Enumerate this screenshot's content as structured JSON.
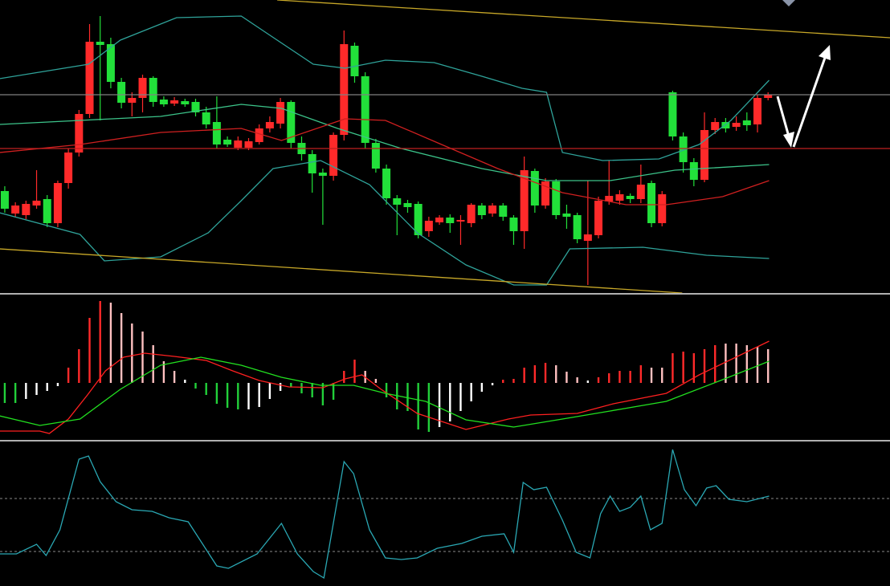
{
  "chart_data": [
    {
      "type": "candlestick",
      "up_color": "#ff2a2a",
      "down_color": "#22e03a",
      "xlim": [
        -0.45,
        83.5
      ],
      "ylim": [
        0,
        365
      ],
      "open": [
        127,
        99,
        97,
        109,
        117,
        87,
        137,
        175,
        223,
        313,
        310,
        263,
        237,
        243,
        268,
        241,
        236,
        239,
        238,
        225,
        213,
        191,
        181,
        181,
        188,
        205,
        211,
        238,
        187,
        173,
        150,
        146,
        197,
        308,
        270,
        187,
        155,
        118,
        112,
        111,
        77,
        88,
        94,
        89,
        87,
        109,
        99,
        109,
        94,
        77,
        152,
        109,
        139,
        99,
        97,
        65,
        72,
        114,
        115,
        121,
        117,
        137,
        87,
        250,
        195,
        163,
        141,
        203,
        213,
        207,
        215,
        210,
        243
      ],
      "high": [
        133,
        113,
        115,
        153,
        122,
        140,
        180,
        228,
        335,
        345,
        318,
        268,
        250,
        272,
        270,
        245,
        244,
        242,
        242,
        232,
        245,
        195,
        195,
        193,
        210,
        220,
        243,
        240,
        195,
        178,
        155,
        200,
        327,
        312,
        275,
        192,
        160,
        122,
        116,
        114,
        95,
        97,
        98,
        97,
        112,
        112,
        112,
        112,
        97,
        170,
        155,
        143,
        142,
        110,
        100,
        140,
        120,
        165,
        128,
        124,
        160,
        140,
        127,
        252,
        200,
        168,
        225,
        218,
        218,
        220,
        225,
        247,
        250
      ],
      "low": [
        100,
        95,
        92,
        105,
        82,
        82,
        130,
        170,
        218,
        215,
        255,
        230,
        220,
        225,
        232,
        232,
        233,
        232,
        220,
        205,
        180,
        182,
        178,
        178,
        185,
        200,
        205,
        180,
        165,
        125,
        85,
        140,
        190,
        262,
        180,
        150,
        110,
        72,
        100,
        68,
        70,
        85,
        75,
        60,
        82,
        92,
        95,
        90,
        60,
        55,
        100,
        105,
        92,
        80,
        62,
        10,
        68,
        110,
        110,
        112,
        112,
        82,
        83,
        190,
        150,
        133,
        138,
        198,
        200,
        202,
        202,
        200,
        240
      ],
      "close": [
        105,
        109,
        111,
        115,
        87,
        137,
        175,
        223,
        313,
        309,
        263,
        237,
        243,
        268,
        238,
        235,
        240,
        235,
        225,
        210,
        185,
        185,
        190,
        189,
        205,
        213,
        238,
        187,
        173,
        149,
        146,
        197,
        310,
        270,
        187,
        155,
        118,
        110,
        107,
        72,
        90,
        94,
        87,
        91,
        110,
        97,
        109,
        95,
        77,
        153,
        109,
        139,
        97,
        95,
        67,
        73,
        115,
        121,
        123,
        117,
        135,
        87,
        123,
        195,
        163,
        141,
        203,
        213,
        205,
        212,
        209,
        243,
        247
      ],
      "lines": [
        {
          "color": "#2fa39a",
          "x": [
            -0.5,
            7.9,
            10.9,
            16.2,
            22.3,
            25.7,
            29.1,
            32.1,
            35.9,
            40.5,
            45,
            48.8,
            51.1,
            52.6,
            56.4,
            61.7,
            65.5,
            68.5,
            72.1
          ],
          "values": [
            267,
            285,
            315,
            343,
            345,
            315,
            285,
            280,
            290,
            287,
            270,
            255,
            250,
            175,
            165,
            167,
            185,
            215,
            265
          ]
        },
        {
          "color": "#3cc48a",
          "x": [
            -0.5,
            7.1,
            14.7,
            22.3,
            26.1,
            31.4,
            37.4,
            45,
            51.1,
            57.1,
            63.2,
            72.1
          ],
          "values": [
            210,
            215,
            220,
            235,
            230,
            205,
            180,
            155,
            140,
            140,
            153,
            160
          ]
        },
        {
          "color": "#2fa39a",
          "x": [
            -0.5,
            7.1,
            9.4,
            14.7,
            19.2,
            22.3,
            25.3,
            29.8,
            34.4,
            38.9,
            43.5,
            48,
            51.1,
            53.3,
            60.2,
            66.2,
            72.1
          ],
          "values": [
            100,
            73,
            40,
            45,
            75,
            115,
            155,
            165,
            135,
            75,
            35,
            10,
            10,
            55,
            57,
            47,
            43
          ]
        },
        {
          "color": "#d02020",
          "x": [
            -0.5,
            7.1,
            14.7,
            22.3,
            26.1,
            32.1,
            35.9,
            41.2,
            46.5,
            52.6,
            58.6,
            62.4,
            67.7,
            72.1
          ],
          "values": [
            175,
            185,
            200,
            205,
            190,
            217,
            215,
            185,
            155,
            125,
            110,
            110,
            120,
            140
          ]
        },
        {
          "color": "#c8a828",
          "x": [
            25.7,
            83.5
          ],
          "values": [
            365,
            318
          ]
        },
        {
          "color": "#c8a828",
          "x": [
            -0.5,
            63.9
          ],
          "values": [
            55,
            0
          ]
        },
        {
          "color": "#808080",
          "x": [
            -0.5,
            83.5
          ],
          "values": [
            247,
            247
          ]
        },
        {
          "color": "#c02020",
          "x": [
            -0.5,
            83.5
          ],
          "values": [
            180,
            180
          ]
        }
      ]
    },
    {
      "type": "bar",
      "xlim": [
        -0.45,
        83.5
      ],
      "ylim": [
        -71,
        109
      ],
      "values": [
        -25,
        -25,
        -20,
        -15,
        -10,
        -4,
        19,
        42,
        81,
        102,
        100,
        87,
        74,
        64,
        47,
        27,
        15,
        4,
        -7,
        -15,
        -26,
        -31,
        -33,
        -33,
        -30,
        -20,
        -10,
        -5,
        -13,
        -18,
        -28,
        -21,
        15,
        29,
        15,
        5,
        -18,
        -33,
        -35,
        -58,
        -61,
        -55,
        -48,
        -35,
        -23,
        -11,
        -3,
        4,
        5,
        19,
        22,
        25,
        22,
        14,
        7,
        3,
        7,
        12,
        15,
        15,
        22,
        19,
        19,
        37,
        39,
        37,
        42,
        47,
        49,
        49,
        47,
        45,
        42
      ],
      "colors": [
        "#22d03a",
        "#22d03a",
        "#ffffff",
        "#ffffff",
        "#ffffff",
        "#ffffff",
        "#ff2a2a",
        "#ff2a2a",
        "#ff2a2a",
        "#ff2a2a",
        "#ffc0c0",
        "#ffc0c0",
        "#ffc0c0",
        "#ffc0c0",
        "#ffc0c0",
        "#ffc0c0",
        "#ffc0c0",
        "#ffffff",
        "#22d03a",
        "#22d03a",
        "#22d03a",
        "#22d03a",
        "#22d03a",
        "#ffffff",
        "#ffffff",
        "#ffffff",
        "#ffffff",
        "#22d03a",
        "#22d03a",
        "#22d03a",
        "#22d03a",
        "#22d03a",
        "#ff2a2a",
        "#ff2a2a",
        "#ffc0c0",
        "#ffc0c0",
        "#22d03a",
        "#22d03a",
        "#22d03a",
        "#22d03a",
        "#22d03a",
        "#ffffff",
        "#ffffff",
        "#ffffff",
        "#ffffff",
        "#ffffff",
        "#ffffff",
        "#ff2a2a",
        "#ff2a2a",
        "#ff2a2a",
        "#ff2a2a",
        "#ff2a2a",
        "#ffc0c0",
        "#ffc0c0",
        "#ffc0c0",
        "#ffffff",
        "#ff2a2a",
        "#ff2a2a",
        "#ff2a2a",
        "#ff2a2a",
        "#ff2a2a",
        "#ffc0c0",
        "#ffc0c0",
        "#ff2a2a",
        "#ff2a2a",
        "#ff2a2a",
        "#ff2a2a",
        "#ff2a2a",
        "#ffc0c0",
        "#ffc0c0",
        "#ffc0c0",
        "#ffc0c0",
        "#ffc0c0"
      ],
      "lines": [
        {
          "color": "#ff2020",
          "x": [
            -0.5,
            3.3,
            4.2,
            6,
            7.8,
            9.5,
            11.2,
            13.2,
            16,
            19,
            21.5,
            24,
            26.8,
            30,
            32.1,
            33.7,
            35.5,
            38.9,
            43.5,
            47.5,
            49.6,
            54,
            57.4,
            62.4,
            65.5,
            72.1
          ],
          "values": [
            -60,
            -60,
            -63,
            -45,
            -15,
            15,
            32,
            37,
            33,
            28,
            15,
            3,
            -5,
            -6,
            5,
            10,
            -8,
            -38,
            -58,
            -45,
            -40,
            -38,
            -26,
            -13,
            10,
            52
          ]
        },
        {
          "color": "#22e020",
          "x": [
            -0.5,
            3.3,
            7.1,
            10.9,
            14.7,
            18.5,
            22.3,
            26.1,
            29.8,
            32.9,
            35.9,
            39.7,
            43.5,
            48,
            52.6,
            57.1,
            62.4,
            67.7,
            72.1
          ],
          "values": [
            -41,
            -53,
            -45,
            -8,
            22,
            32,
            22,
            7,
            -3,
            -3,
            -13,
            -23,
            -46,
            -55,
            -45,
            -35,
            -23,
            4,
            27
          ]
        }
      ]
    },
    {
      "type": "line",
      "xlim": [
        -0.45,
        83.5
      ],
      "ylim": [
        0,
        179
      ],
      "hlines": [
        109,
        43
      ],
      "lines": [
        {
          "color": "#2aa8b4",
          "x": [
            -0.5,
            1.1,
            3,
            3.9,
            5.2,
            7,
            7.9,
            9,
            10.5,
            12,
            13.9,
            15.5,
            17.3,
            20,
            21.1,
            23.8,
            26.1,
            27.6,
            29.1,
            30.1,
            32,
            32.9,
            34.4,
            35.9,
            37.4,
            38.9,
            40.8,
            43.1,
            45,
            47.1,
            48,
            48.9,
            49.9,
            51.1,
            52.6,
            53.9,
            55.2,
            56.2,
            57.1,
            58,
            59,
            60,
            60.9,
            62,
            63,
            64.1,
            65.2,
            66.2,
            67.1,
            68.3,
            70,
            72.1
          ],
          "values": [
            40,
            40,
            52,
            38,
            70,
            158,
            162,
            130,
            105,
            95,
            93,
            85,
            80,
            25,
            22,
            40,
            78,
            40,
            18,
            10,
            155,
            140,
            70,
            35,
            33,
            35,
            47,
            53,
            62,
            65,
            42,
            129,
            120,
            123,
            82,
            42,
            35,
            90,
            112,
            93,
            98,
            112,
            70,
            78,
            170,
            120,
            100,
            122,
            125,
            108,
            105,
            112
          ]
        }
      ]
    }
  ]
}
